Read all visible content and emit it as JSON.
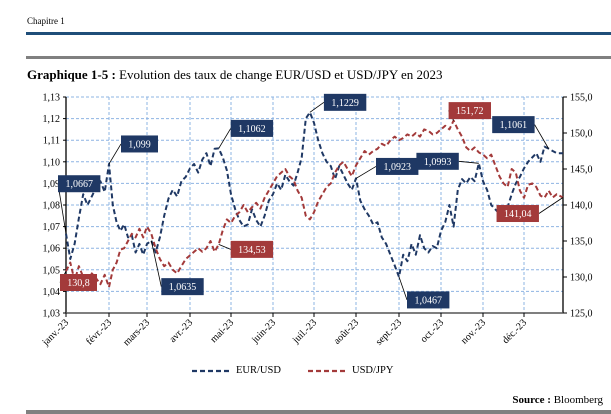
{
  "header": {
    "chapter": "Chapitre 1",
    "figure_label": "Graphique 1-5 :",
    "figure_title": " Evolution des taux de change EUR/USD et USD/JPY en 2023"
  },
  "footer": {
    "source_label": "Source :",
    "source_value": " Bloomberg"
  },
  "colors": {
    "eurusd": "#1f3864",
    "usdjpy": "#a33a3a",
    "grid": "#8eb4e3",
    "rule_blue": "#1f4e79",
    "rule_grey": "#808080"
  },
  "chart_data": {
    "type": "line",
    "title": "Evolution des taux de change EUR/USD et USD/JPY en 2023",
    "categories": [
      "janv.-23",
      "févr.-23",
      "mars-23",
      "avr.-23",
      "mai-23",
      "juin-23",
      "juil.-23",
      "août-23",
      "sept.-23",
      "oct.-23",
      "nov.-23",
      "déc.-23"
    ],
    "left_axis": {
      "min": 1.03,
      "max": 1.13,
      "step": 0.01,
      "ticks": [
        "1,03",
        "1,04",
        "1,05",
        "1,06",
        "1,07",
        "1,08",
        "1,09",
        "1,10",
        "1,11",
        "1,12",
        "1,13"
      ]
    },
    "right_axis": {
      "min": 125.0,
      "max": 155.0,
      "step": 5.0,
      "ticks": [
        "125,0",
        "130,0",
        "135,0",
        "140,0",
        "145,0",
        "150,0",
        "155,0"
      ]
    },
    "grid": true,
    "legend_position": "bottom",
    "series": [
      {
        "name": "EUR/USD",
        "axis": "left",
        "line_style": "dashed",
        "x_month": [
          0,
          0.1,
          0.2,
          0.3,
          0.4,
          0.5,
          0.6,
          0.7,
          0.8,
          0.9,
          1.0,
          1.1,
          1.2,
          1.3,
          1.4,
          1.5,
          1.6,
          1.7,
          1.8,
          1.9,
          2.0,
          2.1,
          2.2,
          2.3,
          2.4,
          2.5,
          2.6,
          2.7,
          2.8,
          2.9,
          3.0,
          3.1,
          3.2,
          3.3,
          3.4,
          3.5,
          3.6,
          3.7,
          3.8,
          3.9,
          4.0,
          4.1,
          4.2,
          4.3,
          4.4,
          4.5,
          4.6,
          4.7,
          4.8,
          4.9,
          5.0,
          5.1,
          5.2,
          5.3,
          5.4,
          5.5,
          5.6,
          5.7,
          5.8,
          5.9,
          6.0,
          6.1,
          6.2,
          6.3,
          6.4,
          6.5,
          6.6,
          6.7,
          6.8,
          6.9,
          7.0,
          7.1,
          7.2,
          7.3,
          7.4,
          7.5,
          7.6,
          7.7,
          7.8,
          7.9,
          8.0,
          8.1,
          8.2,
          8.3,
          8.4,
          8.5,
          8.6,
          8.7,
          8.8,
          8.9,
          9.0,
          9.1,
          9.2,
          9.3,
          9.4,
          9.5,
          9.6,
          9.7,
          9.8,
          9.9,
          10.0,
          10.1,
          10.2,
          10.3,
          10.4,
          10.5,
          10.6,
          10.7,
          10.8,
          10.9,
          11.0,
          11.1,
          11.2,
          11.3,
          11.4,
          11.5,
          11.6,
          11.7,
          11.8,
          11.95
        ],
        "values": [
          1.0667,
          1.055,
          1.062,
          1.074,
          1.085,
          1.08,
          1.084,
          1.088,
          1.091,
          1.086,
          1.099,
          1.08,
          1.072,
          1.068,
          1.071,
          1.065,
          1.066,
          1.058,
          1.062,
          1.057,
          1.062,
          1.0635,
          1.058,
          1.065,
          1.075,
          1.083,
          1.087,
          1.084,
          1.091,
          1.093,
          1.097,
          1.099,
          1.095,
          1.101,
          1.104,
          1.098,
          1.106,
          1.1062,
          1.102,
          1.096,
          1.085,
          1.078,
          1.073,
          1.07,
          1.071,
          1.078,
          1.073,
          1.07,
          1.075,
          1.082,
          1.085,
          1.09,
          1.087,
          1.094,
          1.091,
          1.089,
          1.095,
          1.102,
          1.12,
          1.1229,
          1.118,
          1.11,
          1.104,
          1.1,
          1.098,
          1.092,
          1.098,
          1.094,
          1.09,
          1.087,
          1.0923,
          1.082,
          1.078,
          1.075,
          1.071,
          1.072,
          1.065,
          1.062,
          1.057,
          1.052,
          1.0467,
          1.057,
          1.054,
          1.062,
          1.057,
          1.066,
          1.06,
          1.058,
          1.061,
          1.06,
          1.068,
          1.072,
          1.08,
          1.07,
          1.087,
          1.092,
          1.09,
          1.093,
          1.091,
          1.0993,
          1.091,
          1.087,
          1.08,
          1.078,
          1.076,
          1.078,
          1.079,
          1.085,
          1.09,
          1.093,
          1.097,
          1.1,
          1.102,
          1.104,
          1.1,
          1.107,
          1.1061,
          1.105,
          1.104,
          1.104
        ]
      },
      {
        "name": "USD/JPY",
        "axis": "right",
        "line_style": "dashed",
        "x_month": [
          0,
          0.1,
          0.2,
          0.3,
          0.4,
          0.5,
          0.6,
          0.7,
          0.8,
          0.9,
          1.0,
          1.1,
          1.2,
          1.3,
          1.4,
          1.5,
          1.6,
          1.7,
          1.8,
          1.9,
          2.0,
          2.1,
          2.2,
          2.3,
          2.4,
          2.5,
          2.6,
          2.7,
          2.8,
          2.9,
          3.0,
          3.1,
          3.2,
          3.3,
          3.4,
          3.5,
          3.6,
          3.7,
          3.8,
          3.9,
          4.0,
          4.1,
          4.2,
          4.3,
          4.4,
          4.5,
          4.6,
          4.7,
          4.8,
          4.9,
          5.0,
          5.1,
          5.2,
          5.3,
          5.4,
          5.5,
          5.6,
          5.7,
          5.8,
          5.9,
          6.0,
          6.1,
          6.2,
          6.3,
          6.4,
          6.5,
          6.6,
          6.7,
          6.8,
          6.9,
          7.0,
          7.1,
          7.2,
          7.3,
          7.4,
          7.5,
          7.6,
          7.7,
          7.8,
          7.9,
          8.0,
          8.1,
          8.2,
          8.3,
          8.4,
          8.5,
          8.6,
          8.7,
          8.8,
          8.9,
          9.0,
          9.1,
          9.2,
          9.3,
          9.4,
          9.5,
          9.6,
          9.7,
          9.8,
          9.9,
          10.0,
          10.1,
          10.2,
          10.3,
          10.4,
          10.5,
          10.6,
          10.7,
          10.8,
          10.9,
          11.0,
          11.1,
          11.2,
          11.3,
          11.4,
          11.5,
          11.6,
          11.7,
          11.8,
          11.95
        ],
        "values": [
          130.8,
          132.0,
          129.5,
          131.5,
          130.0,
          129.0,
          130.5,
          129.8,
          129.0,
          130.3,
          128.6,
          131.0,
          132.0,
          133.8,
          134.0,
          135.0,
          136.0,
          135.5,
          136.7,
          135.5,
          137.0,
          136.0,
          134.0,
          132.5,
          131.5,
          132.0,
          131.0,
          130.5,
          131.5,
          132.5,
          133.0,
          133.5,
          134.0,
          133.5,
          134.0,
          135.0,
          133.5,
          134.53,
          136.5,
          138.0,
          137.5,
          138.5,
          139.0,
          140.0,
          139.0,
          139.7,
          140.3,
          139.5,
          141.0,
          142.0,
          143.0,
          144.0,
          144.5,
          145.0,
          144.0,
          143.5,
          142.0,
          141.0,
          138.5,
          138.0,
          139.0,
          140.5,
          141.5,
          142.5,
          143.0,
          144.5,
          145.5,
          146.0,
          145.0,
          144.0,
          145.5,
          146.5,
          147.5,
          147.0,
          147.5,
          147.8,
          148.5,
          148.2,
          149.0,
          149.5,
          149.0,
          149.3,
          149.8,
          149.5,
          150.0,
          149.5,
          150.5,
          150.3,
          149.8,
          150.0,
          150.5,
          151.0,
          150.5,
          151.72,
          150.5,
          149.5,
          148.0,
          147.5,
          148.0,
          147.3,
          147.0,
          146.5,
          147.0,
          145.5,
          144.0,
          143.0,
          142.5,
          145.0,
          144.5,
          142.0,
          141.0,
          142.8,
          143.0,
          142.5,
          141.3,
          141.0,
          142.0,
          141.04,
          141.5,
          141.04
        ]
      }
    ],
    "annotations": [
      {
        "series": "EUR/USD",
        "label": "1,0667",
        "x_month": 0.0,
        "value": 1.0667
      },
      {
        "series": "EUR/USD",
        "label": "1,099",
        "x_month": 1.0,
        "value": 1.099
      },
      {
        "series": "EUR/USD",
        "label": "1,0635",
        "x_month": 2.1,
        "value": 1.0635
      },
      {
        "series": "EUR/USD",
        "label": "1,1062",
        "x_month": 3.7,
        "value": 1.1062
      },
      {
        "series": "EUR/USD",
        "label": "1,1229",
        "x_month": 5.9,
        "value": 1.1229
      },
      {
        "series": "EUR/USD",
        "label": "1,0923",
        "x_month": 7.0,
        "value": 1.0923
      },
      {
        "series": "EUR/USD",
        "label": "1,0467",
        "x_month": 8.0,
        "value": 1.0467
      },
      {
        "series": "EUR/USD",
        "label": "1,0993",
        "x_month": 9.9,
        "value": 1.0993
      },
      {
        "series": "EUR/USD",
        "label": "1,1061",
        "x_month": 11.6,
        "value": 1.1061
      },
      {
        "series": "USD/JPY",
        "label": "130,8",
        "x_month": 0.0,
        "value": 130.8
      },
      {
        "series": "USD/JPY",
        "label": "134,53",
        "x_month": 3.7,
        "value": 134.53
      },
      {
        "series": "USD/JPY",
        "label": "151,72",
        "x_month": 9.3,
        "value": 151.72
      },
      {
        "series": "USD/JPY",
        "label": "141,04",
        "x_month": 11.95,
        "value": 141.04
      }
    ]
  }
}
